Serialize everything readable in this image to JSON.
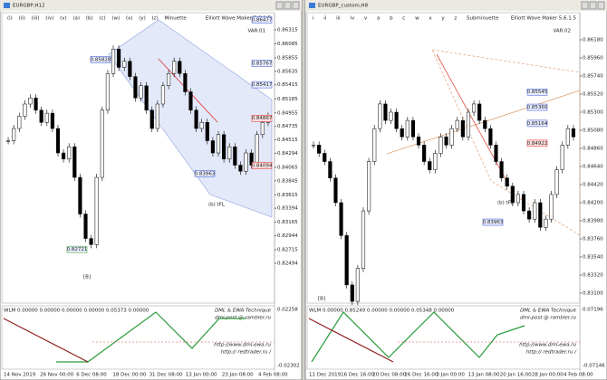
{
  "windows": [
    {
      "title": "EURGBP,H12",
      "wave_labels": "(i) (ii) (iii) (iv) (v) (a) (b) (c) (w) (x) (y) (z) Minuette",
      "maker": "Elliott Wave Maker 5.6.1.5",
      "var": "VAR.01",
      "ylim": [
        0.81842,
        0.86596
      ],
      "yticks": [
        0.86315,
        0.86085,
        0.85855,
        0.85635,
        0.85415,
        0.85185,
        0.84955,
        0.84735,
        0.84515,
        0.84294,
        0.84065,
        0.83845,
        0.83615,
        0.83394,
        0.83165,
        0.82944,
        0.82715,
        0.82494
      ],
      "closes": [
        0.845,
        0.847,
        0.849,
        0.851,
        0.852,
        0.85,
        0.848,
        0.8495,
        0.847,
        0.843,
        0.842,
        0.844,
        0.839,
        0.833,
        0.829,
        0.828,
        0.839,
        0.85,
        0.856,
        0.86,
        0.857,
        0.858,
        0.8555,
        0.852,
        0.854,
        0.85,
        0.847,
        0.851,
        0.854,
        0.856,
        0.858,
        0.856,
        0.853,
        0.85,
        0.847,
        0.848,
        0.845,
        0.843,
        0.846,
        0.842,
        0.844,
        0.841,
        0.84,
        0.843,
        0.841,
        0.846,
        0.848,
        0.849
      ],
      "tags": [
        {
          "value": 0.86477,
          "label": "0.86477",
          "color": "#3050d0"
        },
        {
          "value": 0.85767,
          "label": "0.85767",
          "color": "#3050d0"
        },
        {
          "value": 0.85828,
          "label": "0.85828",
          "color": "#3050d0"
        },
        {
          "value": 0.85417,
          "label": "0.85417",
          "color": "#3050d0"
        },
        {
          "value": 0.84867,
          "label": "0.84867",
          "color": "#e02020"
        },
        {
          "value": 0.84094,
          "label": "0.84094",
          "color": "#e02020"
        },
        {
          "value": 0.83963,
          "label": "0.83963",
          "color": "#3050d0"
        },
        {
          "value": 0.82721,
          "label": "0.82721",
          "color": "#20a020"
        }
      ],
      "marks": [
        "(b) tFL",
        "[B]"
      ],
      "indicator": {
        "header": "WLM 0.00000 0.00000 0.00000 0.00000 0.05373 0.00000",
        "lines": [
          "DML & EWA Technique",
          "dml-post @ rambler.ru",
          "http://www.dml-ewa.ru",
          "http:// redtrader.ru /"
        ],
        "yticks": [
          "0.02258",
          "-0.02302"
        ]
      },
      "dates": [
        "14 Nov 2019",
        "26 Nov 00:00",
        "6 Dec 08:00",
        "18 Dec 00:00",
        "31 Dec 08:00",
        "13 Jan 00:00",
        "23 Jan 08:00",
        "4 Feb 08:00"
      ]
    },
    {
      "title": "EURGBP_custom,H8",
      "wave_labels": "i ii iii iv v a b c w x y z Subminuette",
      "maker": "Elliott Wave Maker 5.6.1.5",
      "var": "VAR.02",
      "ylim": [
        0.82979,
        0.8651
      ],
      "yticks": [
        {
          "value": 0.8618,
          "label": "0.86180"
        },
        {
          "value": 0.8596,
          "label": "0.85960"
        },
        {
          "value": 0.8574,
          "label": "0.85740"
        },
        {
          "value": 0.8552,
          "label": "0.85520"
        },
        {
          "value": 0.853,
          "label": "0.85300"
        },
        {
          "value": 0.8508,
          "label": "0.85080"
        },
        {
          "value": 0.8486,
          "label": "0.84860"
        },
        {
          "value": 0.8464,
          "label": "0.84640"
        },
        {
          "value": 0.8442,
          "label": "0.84420"
        },
        {
          "value": 0.842,
          "label": "0.84200"
        },
        {
          "value": 0.8398,
          "label": "0.83980"
        },
        {
          "value": 0.8376,
          "label": "0.83760"
        },
        {
          "value": 0.8354,
          "label": "0.83540"
        },
        {
          "value": 0.8332,
          "label": "0.83320"
        },
        {
          "value": 0.831,
          "label": "0.83100"
        }
      ],
      "closes": [
        0.849,
        0.848,
        0.847,
        0.845,
        0.842,
        0.838,
        0.832,
        0.83,
        0.834,
        0.841,
        0.847,
        0.851,
        0.854,
        0.852,
        0.853,
        0.851,
        0.85,
        0.852,
        0.85,
        0.849,
        0.847,
        0.846,
        0.848,
        0.85,
        0.849,
        0.851,
        0.852,
        0.85,
        0.853,
        0.854,
        0.852,
        0.851,
        0.849,
        0.847,
        0.845,
        0.844,
        0.842,
        0.843,
        0.841,
        0.84,
        0.842,
        0.839,
        0.84,
        0.843,
        0.846,
        0.849,
        0.851,
        0.85
      ],
      "tags": [
        {
          "value": 0.85545,
          "label": "0.85545",
          "color": "#3050d0"
        },
        {
          "value": 0.8536,
          "label": "0.85360",
          "color": "#3050d0"
        },
        {
          "value": 0.85164,
          "label": "0.85164",
          "color": "#3050d0"
        },
        {
          "value": 0.84922,
          "label": "0.84922",
          "color": "#e02020"
        },
        {
          "value": 0.83963,
          "label": "0.83963",
          "color": "#3050d0"
        }
      ],
      "marks": [
        "(b) tFL",
        "[B]"
      ],
      "indicator": {
        "header": "WLM 0.00000 0.85249 0.00000 0.00000 0.05348 0.00000",
        "lines": [
          "DML & EWA Technique",
          "dml-post @ rambler.ru",
          "http://www.dml-ewa.ru",
          "http:// redtrader.ru /"
        ],
        "yticks": [
          "0.07196",
          "-0.07146"
        ]
      },
      "dates": [
        "11 Dec 2019",
        "16 Dec 16:00",
        "20 Dec 08:00",
        "26 Dec 16:00",
        "3 Jan 00:00",
        "13 Jan 08:00",
        "20 Jan 16:00",
        "28 Jan 00:00",
        "4 Feb 08:00"
      ]
    }
  ]
}
